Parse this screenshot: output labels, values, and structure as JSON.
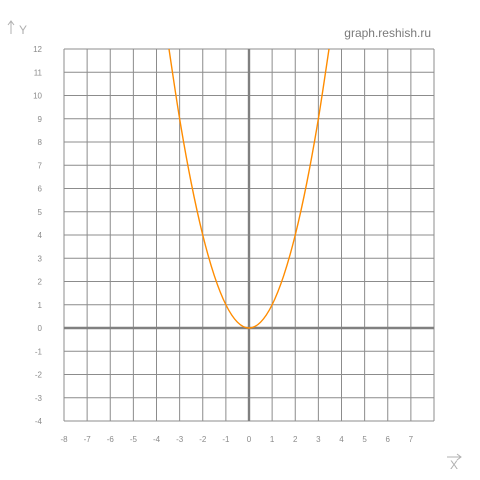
{
  "watermark": "graph.reshish.ru",
  "chart_data": {
    "type": "line",
    "title": "",
    "xlabel": "X",
    "ylabel": "Y",
    "xlim": [
      -8,
      8
    ],
    "ylim": [
      -4,
      12
    ],
    "xticks": [
      -8,
      -7,
      -6,
      -5,
      -4,
      -3,
      -2,
      -1,
      0,
      1,
      2,
      3,
      4,
      5,
      6,
      7
    ],
    "yticks": [
      -4,
      -3,
      -2,
      -1,
      0,
      1,
      2,
      3,
      4,
      5,
      6,
      7,
      8,
      9,
      10,
      11,
      12
    ],
    "grid": true,
    "series": [
      {
        "color": "#ff8c00",
        "x": [
          -3.46,
          -3,
          -2.5,
          -2,
          -1.5,
          -1,
          -0.5,
          0,
          0.5,
          1,
          1.5,
          2,
          2.5,
          3,
          3.46
        ],
        "y": [
          12,
          9,
          6.25,
          4,
          2.25,
          1,
          0.25,
          0,
          0.25,
          1,
          2.25,
          4,
          6.25,
          9,
          12
        ]
      }
    ],
    "colors": {
      "grid": "#8c8c8c",
      "axis": "#808080",
      "curve": "#ff8c00",
      "ticks": "#8a8a8a"
    }
  }
}
